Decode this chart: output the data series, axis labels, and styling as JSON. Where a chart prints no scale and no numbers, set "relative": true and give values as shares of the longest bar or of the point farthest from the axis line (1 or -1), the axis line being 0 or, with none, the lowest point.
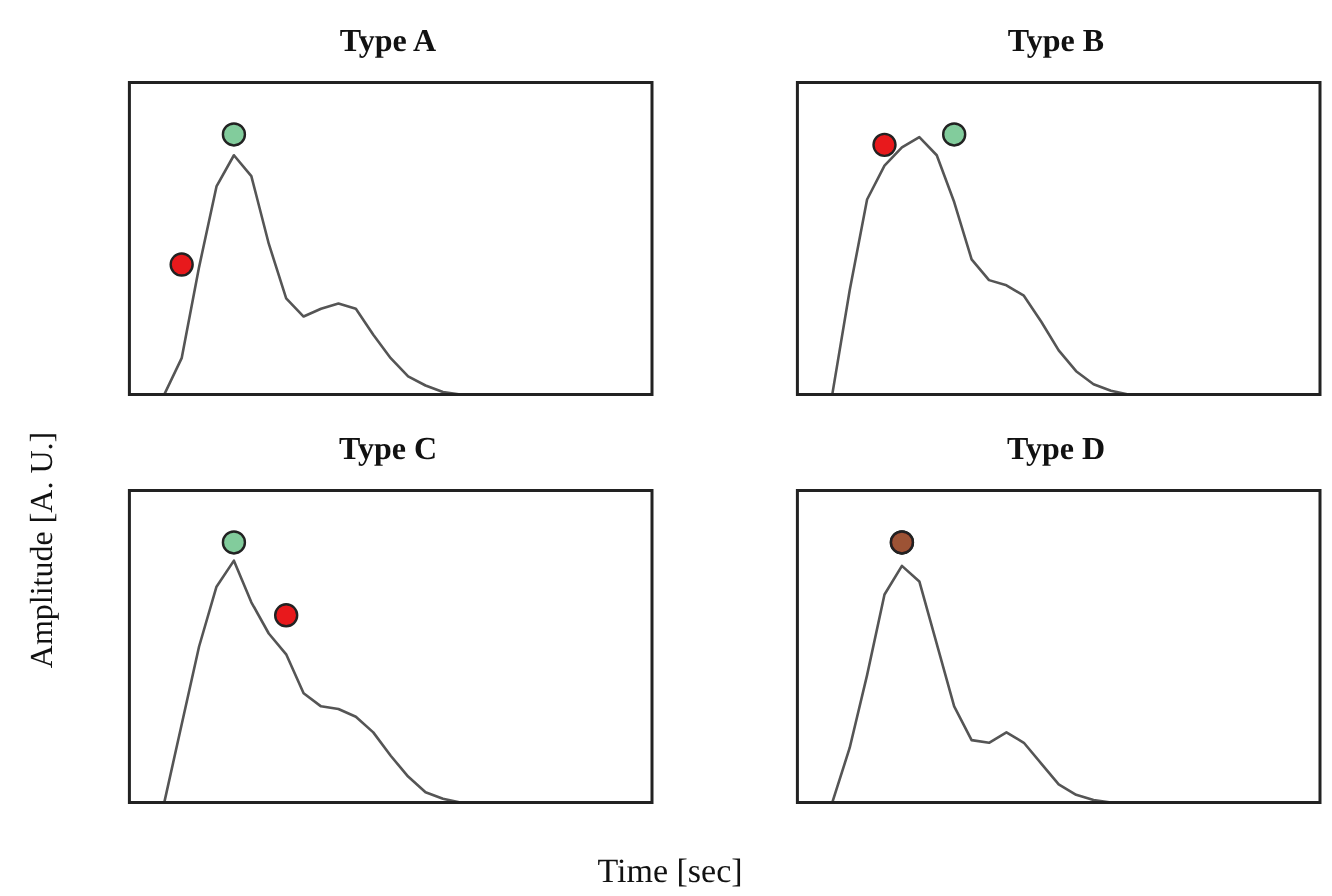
{
  "chart_data": [
    {
      "type": "line",
      "title": "Type A",
      "ylabel": "Amplitude [A. U.]",
      "relative": true,
      "grid": false,
      "tick_labels": false,
      "categories": [
        null,
        null,
        null,
        null,
        null,
        null,
        null,
        null,
        null,
        null,
        null,
        null,
        null,
        null,
        null,
        null,
        null,
        null,
        null,
        null,
        null,
        null,
        null,
        null,
        null,
        null,
        null,
        null,
        null,
        null,
        null
      ],
      "series": [
        {
          "type": "line",
          "marker": "none",
          "color": "#555555",
          "values": [
            0,
            0,
            0,
            0.14,
            0.49,
            0.8,
            0.92,
            0.84,
            0.58,
            0.37,
            0.3,
            0.33,
            0.35,
            0.33,
            0.23,
            0.14,
            0.07,
            0.035,
            0.01,
            0,
            0,
            0,
            0,
            0,
            0,
            0,
            0,
            0,
            0,
            0,
            0
          ]
        },
        {
          "type": "line",
          "marker": "circle",
          "color": "#e8191c",
          "values": [
            null,
            null,
            null,
            0.5,
            null,
            null,
            null,
            null,
            null,
            null,
            null,
            null,
            null,
            null,
            null,
            null,
            null,
            null,
            null,
            null,
            null,
            null,
            null,
            null,
            null,
            null,
            null,
            null,
            null,
            null,
            null
          ]
        },
        {
          "type": "line",
          "marker": "circle",
          "color": "#2eaa5a",
          "values": [
            null,
            null,
            null,
            null,
            null,
            null,
            1,
            null,
            null,
            null,
            null,
            null,
            null,
            null,
            null,
            null,
            null,
            null,
            null,
            null,
            null,
            null,
            null,
            null,
            null,
            null,
            null,
            null,
            null,
            null,
            null
          ]
        }
      ]
    },
    {
      "type": "line",
      "title": "Type B",
      "relative": true,
      "grid": false,
      "tick_labels": false,
      "categories": [
        null,
        null,
        null,
        null,
        null,
        null,
        null,
        null,
        null,
        null,
        null,
        null,
        null,
        null,
        null,
        null,
        null,
        null,
        null,
        null,
        null,
        null,
        null,
        null,
        null,
        null,
        null,
        null,
        null,
        null,
        null
      ],
      "series": [
        {
          "type": "line",
          "marker": "none",
          "color": "#555555",
          "values": [
            0,
            0,
            0,
            0.4,
            0.75,
            0.88,
            0.95,
            0.99,
            0.92,
            0.74,
            0.52,
            0.44,
            0.42,
            0.38,
            0.28,
            0.17,
            0.09,
            0.04,
            0.015,
            0,
            0,
            0,
            0,
            0,
            0,
            0,
            0,
            0,
            0,
            0,
            0
          ]
        },
        {
          "type": "line",
          "marker": "circle",
          "color": "#e8191c",
          "values": [
            null,
            null,
            null,
            null,
            null,
            0.96,
            null,
            null,
            null,
            null,
            null,
            null,
            null,
            null,
            null,
            null,
            null,
            null,
            null,
            null,
            null,
            null,
            null,
            null,
            null,
            null,
            null,
            null,
            null,
            null,
            null
          ]
        },
        {
          "type": "line",
          "marker": "circle",
          "color": "#2eaa5a",
          "values": [
            null,
            null,
            null,
            null,
            null,
            null,
            null,
            null,
            null,
            1,
            null,
            null,
            null,
            null,
            null,
            null,
            null,
            null,
            null,
            null,
            null,
            null,
            null,
            null,
            null,
            null,
            null,
            null,
            null,
            null,
            null
          ]
        }
      ]
    },
    {
      "type": "line",
      "title": "Type C",
      "xlabel": "Time [sec]",
      "relative": true,
      "grid": false,
      "tick_labels": false,
      "categories": [
        null,
        null,
        null,
        null,
        null,
        null,
        null,
        null,
        null,
        null,
        null,
        null,
        null,
        null,
        null,
        null,
        null,
        null,
        null,
        null,
        null,
        null,
        null,
        null,
        null,
        null,
        null,
        null,
        null,
        null,
        null
      ],
      "series": [
        {
          "type": "line",
          "marker": "none",
          "color": "#555555",
          "values": [
            0,
            0,
            0,
            0.3,
            0.6,
            0.83,
            0.93,
            0.77,
            0.65,
            0.57,
            0.42,
            0.37,
            0.36,
            0.33,
            0.27,
            0.18,
            0.1,
            0.04,
            0.015,
            0,
            0,
            0,
            0,
            0,
            0,
            0,
            0,
            0,
            0,
            0,
            0
          ]
        },
        {
          "type": "line",
          "marker": "circle",
          "color": "#e8191c",
          "values": [
            null,
            null,
            null,
            null,
            null,
            null,
            null,
            null,
            null,
            0.72,
            null,
            null,
            null,
            null,
            null,
            null,
            null,
            null,
            null,
            null,
            null,
            null,
            null,
            null,
            null,
            null,
            null,
            null,
            null,
            null,
            null
          ]
        },
        {
          "type": "line",
          "marker": "circle",
          "color": "#2eaa5a",
          "values": [
            null,
            null,
            null,
            null,
            null,
            null,
            1,
            null,
            null,
            null,
            null,
            null,
            null,
            null,
            null,
            null,
            null,
            null,
            null,
            null,
            null,
            null,
            null,
            null,
            null,
            null,
            null,
            null,
            null,
            null,
            null
          ]
        }
      ]
    },
    {
      "type": "line",
      "title": "Type D",
      "relative": true,
      "grid": false,
      "tick_labels": false,
      "categories": [
        null,
        null,
        null,
        null,
        null,
        null,
        null,
        null,
        null,
        null,
        null,
        null,
        null,
        null,
        null,
        null,
        null,
        null,
        null,
        null,
        null,
        null,
        null,
        null,
        null,
        null,
        null,
        null,
        null,
        null,
        null
      ],
      "series": [
        {
          "type": "line",
          "marker": "none",
          "color": "#555555",
          "values": [
            0,
            0,
            0,
            0.21,
            0.49,
            0.8,
            0.91,
            0.85,
            0.61,
            0.37,
            0.24,
            0.23,
            0.27,
            0.23,
            0.15,
            0.07,
            0.03,
            0.01,
            0,
            0,
            0,
            0,
            0,
            0,
            0,
            0,
            0,
            0,
            0,
            0,
            0
          ]
        },
        {
          "type": "line",
          "marker": "circle",
          "color": "#2eaa5a",
          "values": [
            null,
            null,
            null,
            null,
            null,
            null,
            1,
            null,
            null,
            null,
            null,
            null,
            null,
            null,
            null,
            null,
            null,
            null,
            null,
            null,
            null,
            null,
            null,
            null,
            null,
            null,
            null,
            null,
            null,
            null,
            null
          ]
        },
        {
          "type": "line",
          "marker": "circle",
          "color": "#e8191c",
          "values": [
            null,
            null,
            null,
            null,
            null,
            null,
            1,
            null,
            null,
            null,
            null,
            null,
            null,
            null,
            null,
            null,
            null,
            null,
            null,
            null,
            null,
            null,
            null,
            null,
            null,
            null,
            null,
            null,
            null,
            null,
            null
          ]
        }
      ]
    }
  ]
}
